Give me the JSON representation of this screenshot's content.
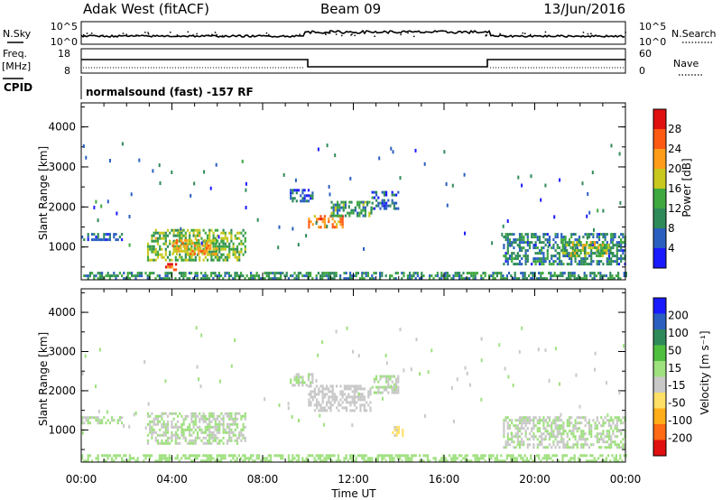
{
  "header": {
    "station": "Adak West (fitACF)",
    "beam": "Beam 09",
    "date": "13/Jun/2016"
  },
  "noise_panel": {
    "left_label": "N.Sky",
    "right_label": "N.Search",
    "left_ticks": [
      "10^5",
      "10^0"
    ],
    "right_ticks": [
      "10^5",
      "10^0"
    ]
  },
  "freq_panel": {
    "left_label_1": "Freq.",
    "left_label_2": "[MHz]",
    "right_label": "Nave",
    "left_ticks": [
      "18",
      "8"
    ],
    "right_ticks": [
      "60",
      "0"
    ]
  },
  "cpid_panel": {
    "label": "CPID",
    "text": "normalsound (fast) -157 RF"
  },
  "colors": {
    "power_scale": [
      "#1a1aff",
      "#2a5fc0",
      "#2f8a5a",
      "#3fa83f",
      "#c8c81e",
      "#ff9d1a",
      "#ff5a14",
      "#e01010"
    ],
    "velocity_scale": [
      "#e01010",
      "#ff6a14",
      "#ffae1a",
      "#ffe066",
      "#c8c8c8",
      "#9fe07f",
      "#4fbf3f",
      "#2f8a5a",
      "#2a5fc0",
      "#1a1aff"
    ]
  },
  "chart_data": [
    {
      "type": "heatmap",
      "ylabel": "Slant Range [km]",
      "yticks": [
        "1000",
        "2000",
        "3000",
        "4000"
      ],
      "ylim": [
        180,
        4600
      ],
      "xticks": [
        "00:00",
        "04:00",
        "08:00",
        "12:00",
        "16:00",
        "20:00",
        "00:00"
      ],
      "xlim": [
        0,
        24
      ],
      "colorbar": {
        "label": "Power [dB]",
        "ticks": [
          "4",
          "8",
          "12",
          "16",
          "20",
          "24",
          "28"
        ],
        "range": [
          0,
          30
        ]
      },
      "regions": [
        {
          "t0": 0.0,
          "t1": 1.8,
          "r0": 1200,
          "r1": 1350,
          "value": 6
        },
        {
          "t0": 2.9,
          "t1": 7.2,
          "r0": 650,
          "r1": 1450,
          "value": 14
        },
        {
          "t0": 4.0,
          "t1": 6.0,
          "r0": 800,
          "r1": 1200,
          "value": 19
        },
        {
          "t0": 3.7,
          "t1": 4.2,
          "r0": 400,
          "r1": 600,
          "value": 27
        },
        {
          "t0": 9.2,
          "t1": 10.2,
          "r0": 2150,
          "r1": 2450,
          "value": 6
        },
        {
          "t0": 10.0,
          "t1": 11.5,
          "r0": 1500,
          "r1": 1800,
          "value": 22
        },
        {
          "t0": 11.0,
          "t1": 12.8,
          "r0": 1750,
          "r1": 2150,
          "value": 11
        },
        {
          "t0": 12.8,
          "t1": 14.0,
          "r0": 1950,
          "r1": 2400,
          "value": 7
        },
        {
          "t0": 18.6,
          "t1": 24.0,
          "r0": 550,
          "r1": 1350,
          "value": 8
        },
        {
          "t0": 21.2,
          "t1": 23.4,
          "r0": 750,
          "r1": 1150,
          "value": 15
        },
        {
          "t0": 0.0,
          "t1": 24.0,
          "r0": 180,
          "r1": 380,
          "value": 10
        }
      ]
    },
    {
      "type": "heatmap",
      "ylabel": "Slant Range [km]",
      "yticks": [
        "1000",
        "2000",
        "3000",
        "4000"
      ],
      "ylim": [
        180,
        4600
      ],
      "xticks": [
        "00:00",
        "04:00",
        "08:00",
        "12:00",
        "16:00",
        "20:00",
        "00:00"
      ],
      "xlim": [
        0,
        24
      ],
      "xlabel": "Time UT",
      "colorbar": {
        "label": "Velocity [m s⁻¹]",
        "ticks": [
          "-200",
          "-100",
          "-50",
          "-15",
          "15",
          "50",
          "100",
          "200"
        ],
        "range": [
          -250,
          250
        ]
      },
      "regions": [
        {
          "t0": 0.0,
          "t1": 1.8,
          "r0": 1200,
          "r1": 1350,
          "value": 0
        },
        {
          "t0": 2.9,
          "t1": 7.2,
          "r0": 650,
          "r1": 1450,
          "value": 0
        },
        {
          "t0": 9.2,
          "t1": 10.2,
          "r0": 2150,
          "r1": 2450,
          "value": 0
        },
        {
          "t0": 10.0,
          "t1": 12.8,
          "r0": 1500,
          "r1": 2150,
          "value": -25
        },
        {
          "t0": 12.8,
          "t1": 14.0,
          "r0": 1950,
          "r1": 2400,
          "value": 0
        },
        {
          "t0": 13.7,
          "t1": 14.2,
          "r0": 850,
          "r1": 1100,
          "value": -60
        },
        {
          "t0": 18.6,
          "t1": 24.0,
          "r0": 550,
          "r1": 1350,
          "value": 0
        },
        {
          "t0": 0.0,
          "t1": 24.0,
          "r0": 180,
          "r1": 380,
          "value": 20
        }
      ]
    }
  ]
}
